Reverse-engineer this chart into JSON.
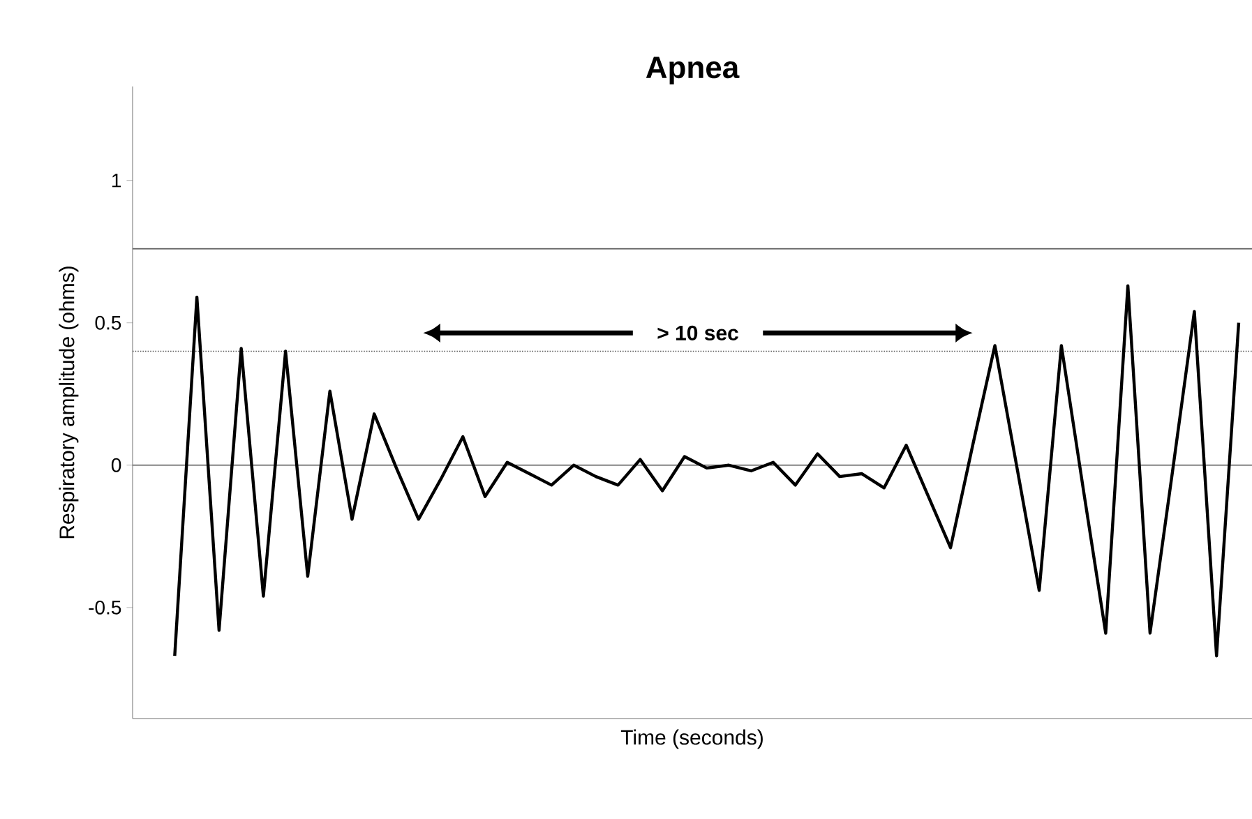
{
  "chart_data": {
    "type": "line",
    "title": "Apnea",
    "xlabel": "Time  (seconds)",
    "ylabel": "Respiratory amplitude (ohms)",
    "categories": [
      null,
      null,
      null,
      null,
      null,
      null,
      null,
      null,
      null,
      null,
      null,
      null,
      null,
      null,
      null,
      null,
      null,
      null,
      null,
      null,
      null,
      null,
      null,
      null,
      null,
      null,
      null,
      null,
      null,
      null,
      null,
      null,
      null,
      null,
      null,
      null,
      null,
      null,
      null,
      null,
      null,
      null,
      null,
      null,
      null,
      null,
      null,
      null,
      null
    ],
    "series": [
      {
        "color": "#000000",
        "values": [
          -0.67,
          0.59,
          -0.58,
          0.41,
          -0.46,
          0.4,
          -0.39,
          0.26,
          -0.19,
          0.18,
          -0.01,
          -0.19,
          -0.05,
          0.1,
          -0.11,
          0.01,
          -0.03,
          -0.07,
          0.0,
          -0.04,
          -0.07,
          0.02,
          -0.09,
          0.03,
          -0.01,
          0.0,
          -0.02,
          0.01,
          -0.07,
          0.04,
          -0.04,
          -0.03,
          -0.08,
          0.07,
          -0.11,
          -0.29,
          0.07,
          0.42,
          -0.01,
          -0.44,
          0.42,
          -0.09,
          -0.59,
          0.63,
          -0.59,
          -0.03,
          0.54,
          -0.67,
          0.5
        ]
      }
    ],
    "ylim": [
      -0.89,
      1.33
    ],
    "yticks": [
      -0.5,
      0,
      0.5,
      1
    ],
    "tick_labels": "y",
    "grid": false,
    "legend": false,
    "marker": "none",
    "line_style": "solid",
    "ref_lines": [
      {
        "axis": "y",
        "value": 0.76,
        "color": "#555555",
        "line_style": "solid"
      },
      {
        "axis": "y",
        "value": 0.4,
        "color": "#555555",
        "line_style": "dotted"
      },
      {
        "axis": "y",
        "value": 0,
        "color": "#555555",
        "line_style": "solid"
      }
    ],
    "annotations": [
      "> 10 sec"
    ]
  }
}
